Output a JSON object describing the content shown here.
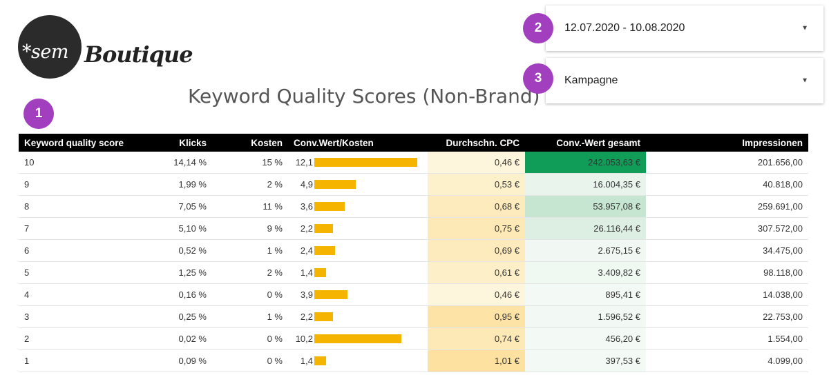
{
  "logo": {
    "prefix": "*sem",
    "name": "Boutique"
  },
  "badges": [
    "1",
    "2",
    "3"
  ],
  "title": "Keyword Quality Scores (Non-Brand)",
  "date_filter": {
    "value": "12.07.2020 - 10.08.2020"
  },
  "campaign_filter": {
    "value": "Kampagne"
  },
  "table": {
    "headers": [
      "Keyword quality score",
      "Klicks",
      "Kosten",
      "Conv.Wert/Kosten",
      "Durchschn. CPC",
      "Conv.-Wert gesamt",
      "Impressionen"
    ],
    "rows": [
      {
        "score": "10",
        "klicks": "14,14 %",
        "kosten": "15 %",
        "ratio": "12,1",
        "ratio_value": 12.1,
        "cpc": "0,46 €",
        "cpc_color": "#fdf6dc",
        "conv": "242.053,63 €",
        "conv_color": "#0f9d58",
        "impr": "201.656,00"
      },
      {
        "score": "9",
        "klicks": "1,99 %",
        "kosten": "2 %",
        "ratio": "4,9",
        "ratio_value": 4.9,
        "cpc": "0,53 €",
        "cpc_color": "#fdf1cc",
        "conv": "16.004,35 €",
        "conv_color": "#e8f4ec",
        "impr": "40.818,00"
      },
      {
        "score": "8",
        "klicks": "7,05 %",
        "kosten": "11 %",
        "ratio": "3,6",
        "ratio_value": 3.6,
        "cpc": "0,68 €",
        "cpc_color": "#fdebbd",
        "conv": "53.957,08 €",
        "conv_color": "#c6e6d1",
        "impr": "259.691,00"
      },
      {
        "score": "7",
        "klicks": "5,10 %",
        "kosten": "9 %",
        "ratio": "2,2",
        "ratio_value": 2.2,
        "cpc": "0,75 €",
        "cpc_color": "#fde9b6",
        "conv": "26.116,44 €",
        "conv_color": "#dcefe2",
        "impr": "307.572,00"
      },
      {
        "score": "6",
        "klicks": "0,52 %",
        "kosten": "1 %",
        "ratio": "2,4",
        "ratio_value": 2.4,
        "cpc": "0,69 €",
        "cpc_color": "#fdebbd",
        "conv": "2.675,15 €",
        "conv_color": "#f1f8f3",
        "impr": "34.475,00"
      },
      {
        "score": "5",
        "klicks": "1,25 %",
        "kosten": "2 %",
        "ratio": "1,4",
        "ratio_value": 1.4,
        "cpc": "0,61 €",
        "cpc_color": "#fdefc7",
        "conv": "3.409,82 €",
        "conv_color": "#f0f8f2",
        "impr": "98.118,00"
      },
      {
        "score": "4",
        "klicks": "0,16 %",
        "kosten": "0 %",
        "ratio": "3,9",
        "ratio_value": 3.9,
        "cpc": "0,46 €",
        "cpc_color": "#fdf6dc",
        "conv": "895,41 €",
        "conv_color": "#f3f9f5",
        "impr": "14.038,00"
      },
      {
        "score": "3",
        "klicks": "0,25 %",
        "kosten": "1 %",
        "ratio": "2,2",
        "ratio_value": 2.2,
        "cpc": "0,95 €",
        "cpc_color": "#fde3a5",
        "conv": "1.596,52 €",
        "conv_color": "#f2f9f4",
        "impr": "22.753,00"
      },
      {
        "score": "2",
        "klicks": "0,02 %",
        "kosten": "0 %",
        "ratio": "10,2",
        "ratio_value": 10.2,
        "cpc": "0,74 €",
        "cpc_color": "#fde9b6",
        "conv": "456,20 €",
        "conv_color": "#f3f9f5",
        "impr": "1.554,00"
      },
      {
        "score": "1",
        "klicks": "0,09 %",
        "kosten": "0 %",
        "ratio": "1,4",
        "ratio_value": 1.4,
        "cpc": "1,01 €",
        "cpc_color": "#fde1a0",
        "conv": "397,53 €",
        "conv_color": "#f3f9f5",
        "impr": "4.099,00"
      }
    ]
  },
  "colors": {
    "bar": "#f4b400",
    "badge": "#a23fbf",
    "header_bg": "#000000"
  }
}
